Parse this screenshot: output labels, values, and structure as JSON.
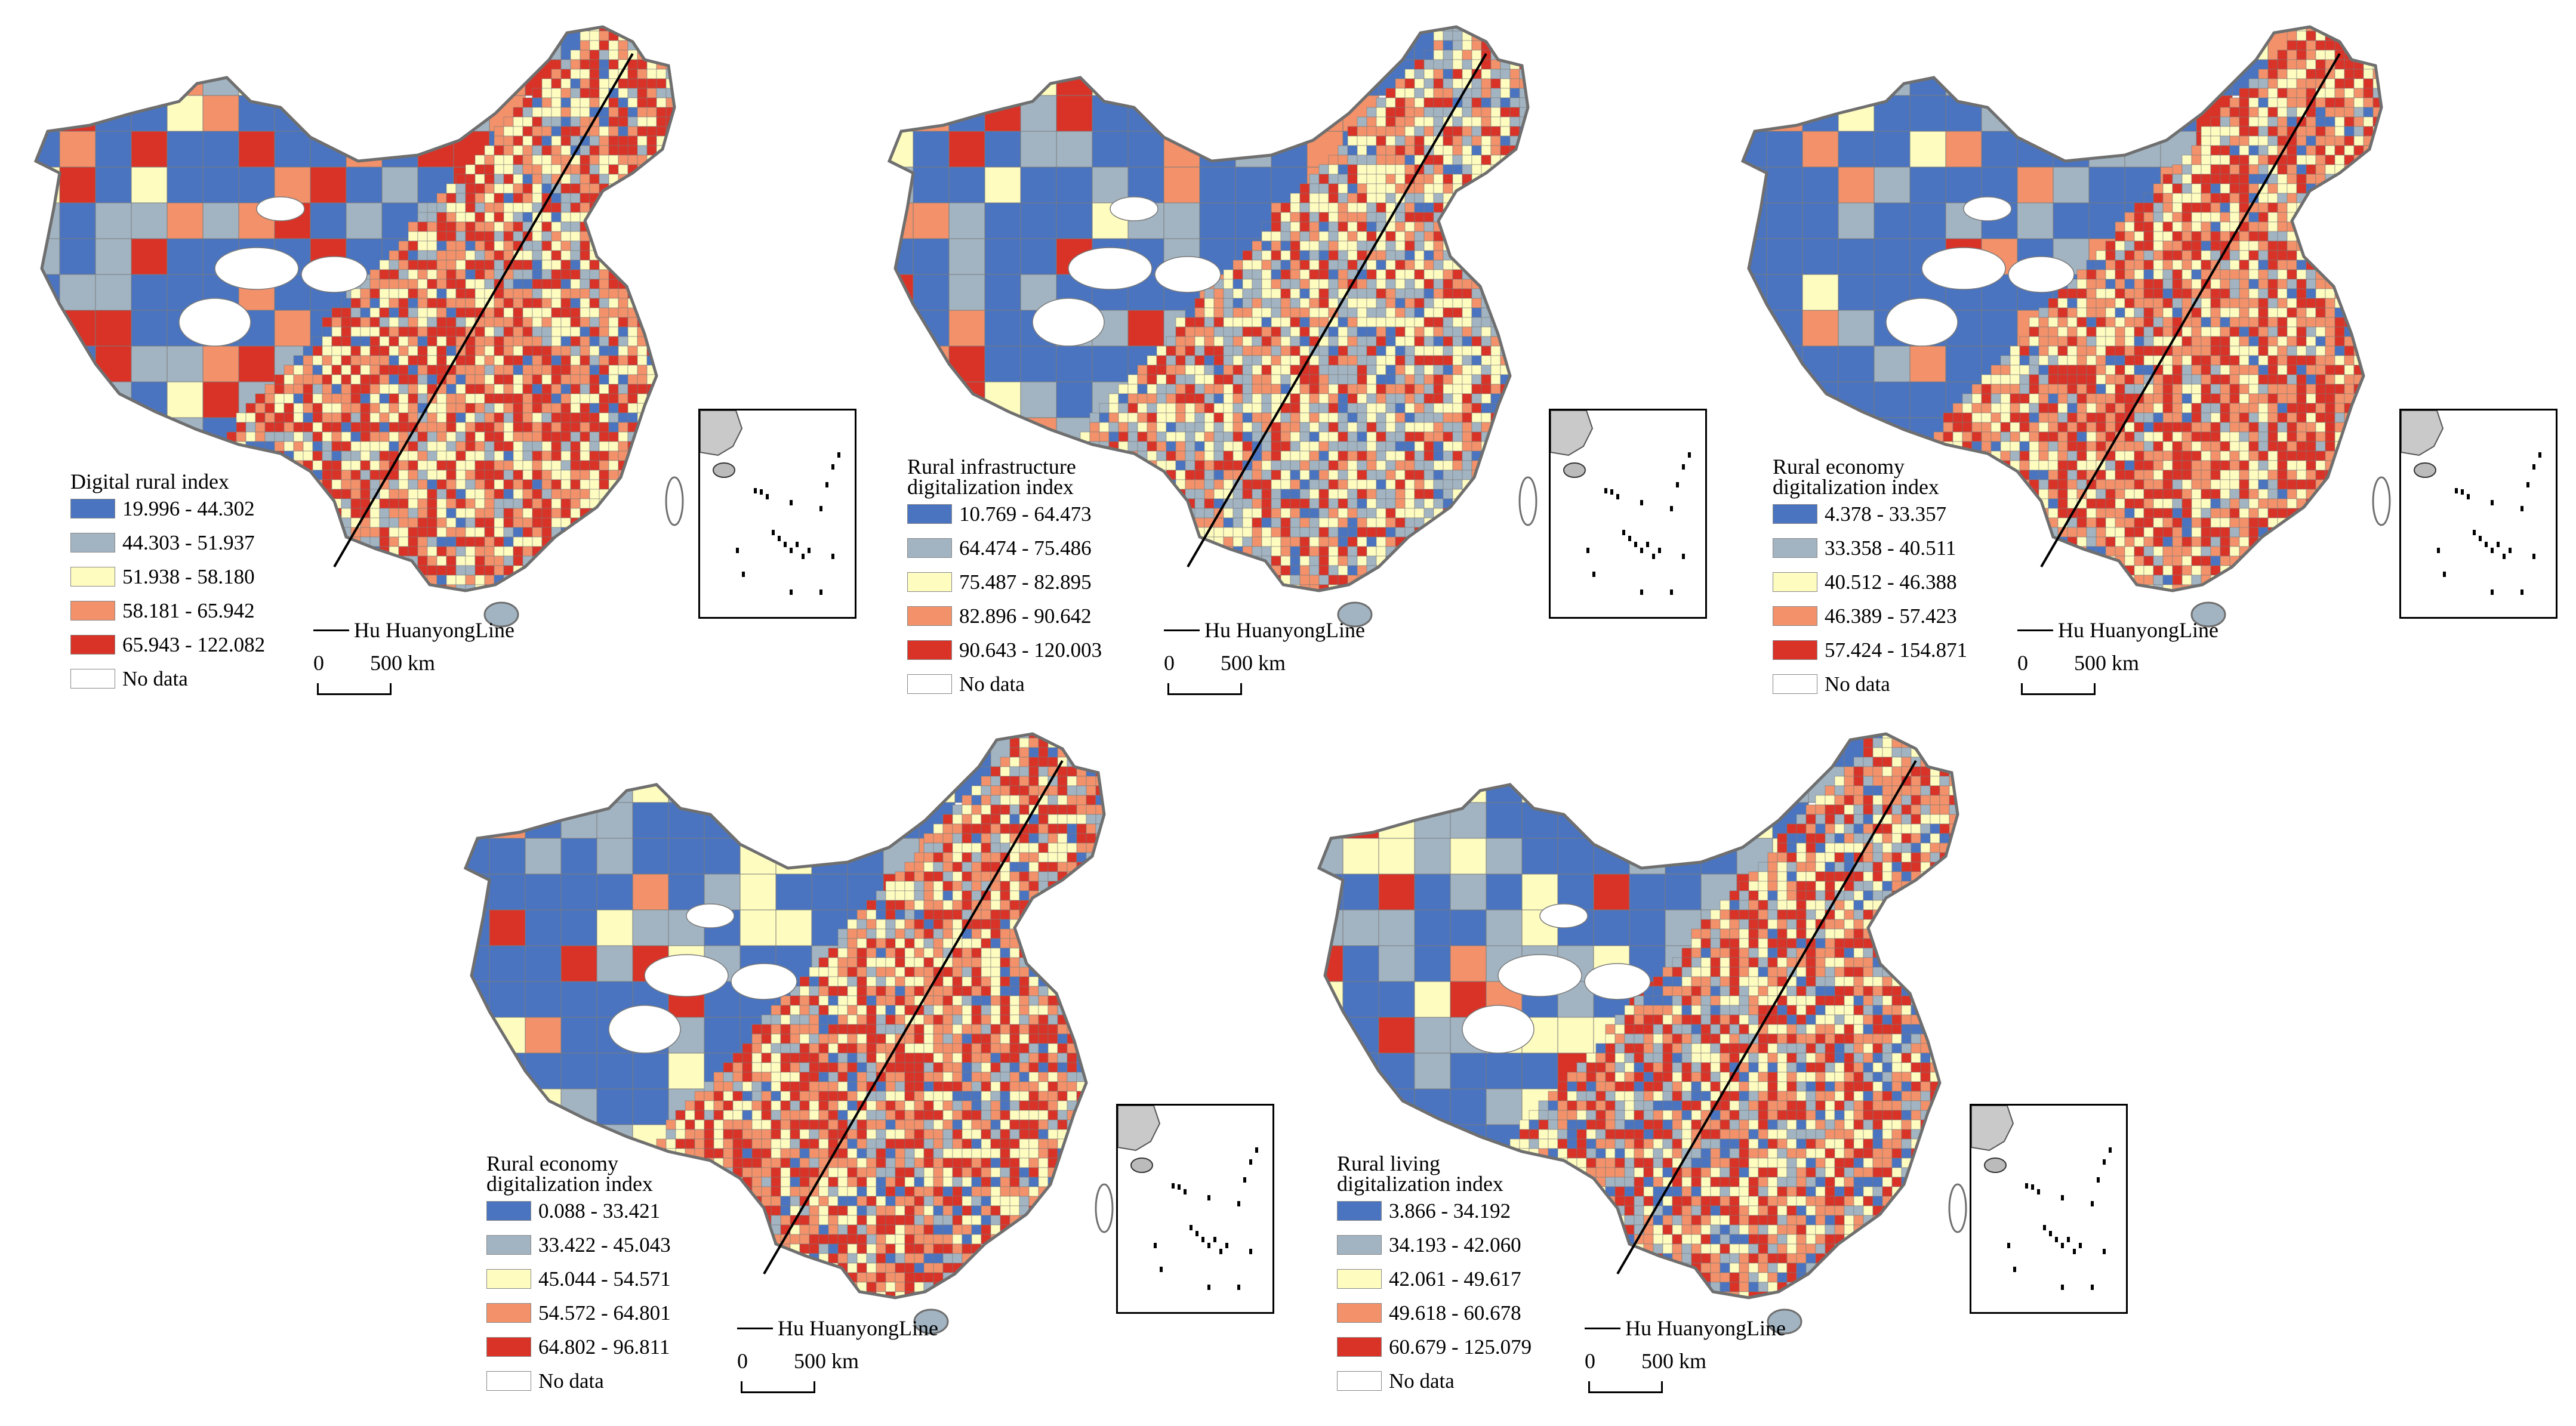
{
  "colors": {
    "class1": "#4a74c0",
    "class2": "#a2b4c2",
    "class3": "#fffcc0",
    "class4": "#f2916a",
    "class5": "#d93328",
    "nodata": "#ffffff",
    "border": "#7a7a7a"
  },
  "hu_line_label": "Hu HuanyongLine",
  "scale": {
    "zero": "0",
    "distance": "500 km"
  },
  "panels": [
    {
      "legend_title": "Digital rural index",
      "classes": [
        "19.996 - 44.302",
        "44.303 - 51.937",
        "51.938 - 58.180",
        "58.181 - 65.942",
        "65.943 - 122.082"
      ],
      "nodata_label": "No data"
    },
    {
      "legend_title": "Rural infrastructure\ndigitalization index",
      "classes": [
        "10.769 - 64.473",
        "64.474 - 75.486",
        "75.487 - 82.895",
        "82.896 - 90.642",
        "90.643 - 120.003"
      ],
      "nodata_label": "No data"
    },
    {
      "legend_title": "Rural economy\ndigitalization index",
      "classes": [
        "4.378 - 33.357",
        "33.358 - 40.511",
        "40.512 - 46.388",
        "46.389 - 57.423",
        "57.424 - 154.871"
      ],
      "nodata_label": "No data"
    },
    {
      "legend_title": "Rural economy\ndigitalization index",
      "classes": [
        "0.088 - 33.421",
        "33.422 - 45.043",
        "45.044 - 54.571",
        "54.572 - 64.801",
        "64.802 - 96.811"
      ],
      "nodata_label": "No data"
    },
    {
      "legend_title": "Rural living\ndigitalization index",
      "classes": [
        "3.866 - 34.192",
        "34.193 - 42.060",
        "42.061 - 49.617",
        "49.618 - 60.678",
        "60.679 - 125.079"
      ],
      "nodata_label": "No data"
    }
  ]
}
